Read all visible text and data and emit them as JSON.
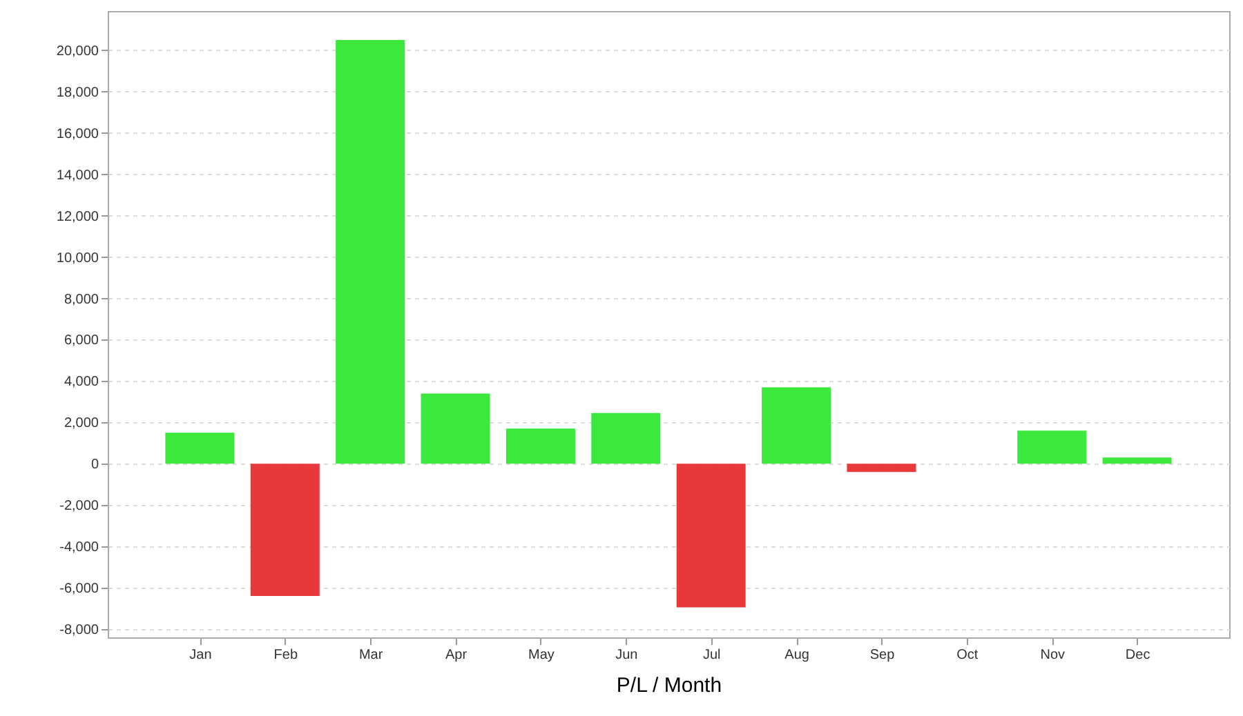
{
  "chart_data": {
    "type": "bar",
    "xlabel": "P/L / Month",
    "categories": [
      "Jan",
      "Feb",
      "Mar",
      "Apr",
      "May",
      "Jun",
      "Jul",
      "Aug",
      "Sep",
      "Oct",
      "Nov",
      "Dec"
    ],
    "values": [
      1500,
      -6400,
      20500,
      3400,
      1700,
      2450,
      -6950,
      3700,
      -400,
      0,
      1600,
      300
    ],
    "colors": [
      "#3ce83c",
      "#e8383c",
      "#3ce83c",
      "#3ce83c",
      "#3ce83c",
      "#3ce83c",
      "#e8383c",
      "#3ce83c",
      "#e8383c",
      "#3ce83c",
      "#3ce83c",
      "#3ce83c"
    ],
    "ylim": [
      -8400,
      21900
    ],
    "yticks": [
      {
        "value": -8000,
        "label": "-8,000"
      },
      {
        "value": -6000,
        "label": "-6,000"
      },
      {
        "value": -4000,
        "label": "-4,000"
      },
      {
        "value": -2000,
        "label": "-2,000"
      },
      0,
      {
        "value": 2000,
        "label": "2,000"
      },
      {
        "value": 4000,
        "label": "4,000"
      },
      {
        "value": 6000,
        "label": "6,000"
      },
      {
        "value": 8000,
        "label": "8,000"
      },
      {
        "value": 10000,
        "label": "10,000"
      },
      {
        "value": 12000,
        "label": "12,000"
      },
      {
        "value": 14000,
        "label": "14,000"
      },
      {
        "value": 16000,
        "label": "16,000"
      },
      {
        "value": 18000,
        "label": "18,000"
      },
      {
        "value": 20000,
        "label": "20,000"
      }
    ],
    "grid": "y"
  }
}
